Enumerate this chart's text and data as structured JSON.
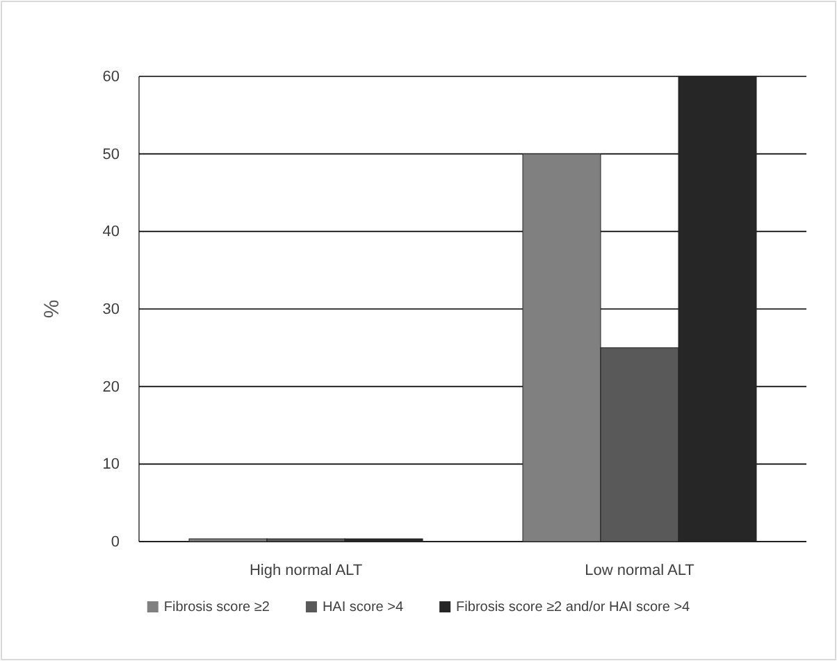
{
  "chart_data": {
    "type": "bar",
    "ylabel": "%",
    "categories": [
      "High normal ALT",
      "Low normal ALT"
    ],
    "series": [
      {
        "name": "Fibrosis score ≥2",
        "color": "#808080",
        "values": [
          0,
          50
        ]
      },
      {
        "name": "HAI score >4",
        "color": "#595959",
        "values": [
          0,
          25
        ]
      },
      {
        "name": "Fibrosis score ≥2 and/or HAI score >4",
        "color": "#262626",
        "values": [
          0,
          60
        ]
      }
    ],
    "ylim": [
      0,
      60
    ],
    "yticks": [
      0,
      10,
      20,
      30,
      40,
      50,
      60
    ],
    "grid": "y",
    "legend": "bottom"
  }
}
